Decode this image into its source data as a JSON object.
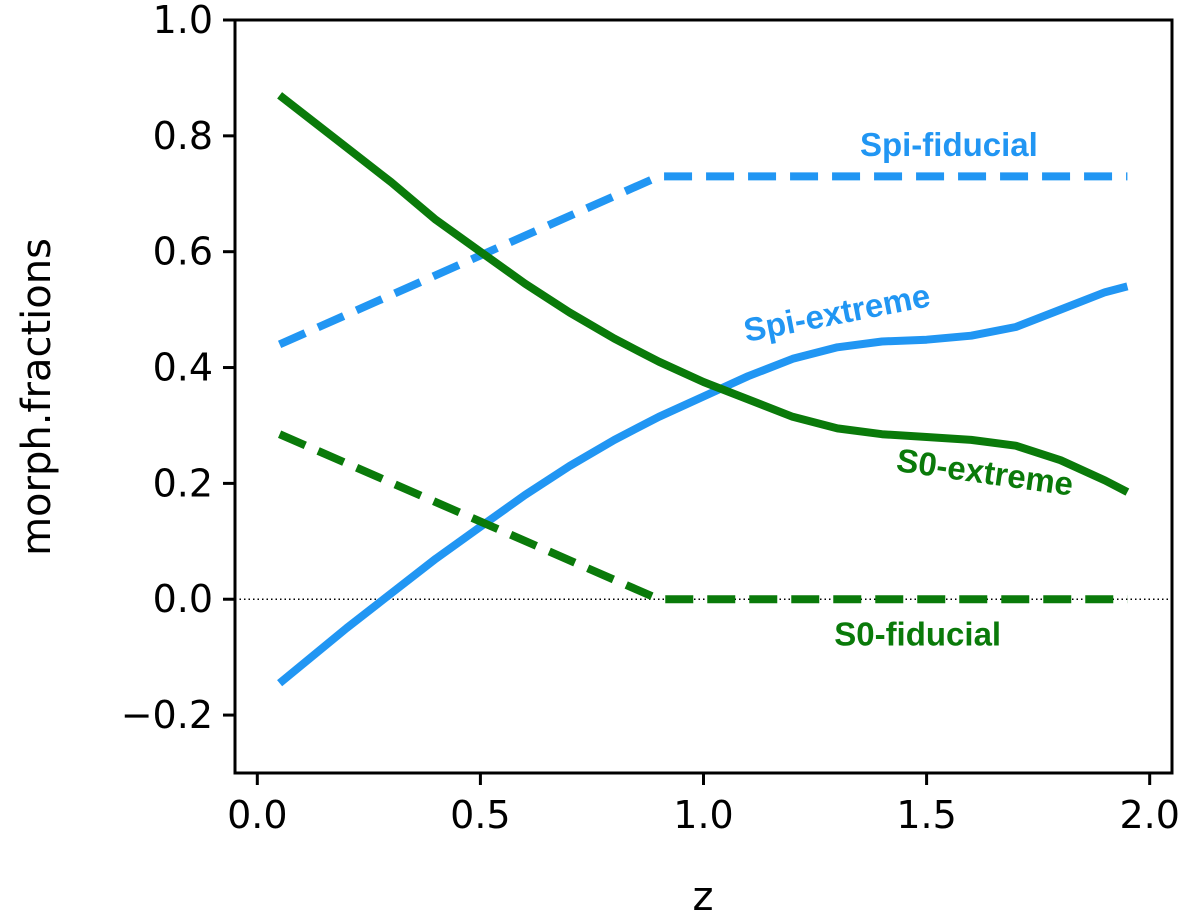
{
  "chart_data": {
    "type": "line",
    "xlabel": "z",
    "ylabel": "morph.fractions",
    "xlim": [
      -0.05,
      2.05
    ],
    "ylim": [
      -0.3,
      1.0
    ],
    "xticks": [
      0.0,
      0.5,
      1.0,
      1.5,
      2.0
    ],
    "xtick_labels": [
      "0.0",
      "0.5",
      "1.0",
      "1.5",
      "2.0"
    ],
    "yticks": [
      -0.2,
      0.0,
      0.2,
      0.4,
      0.6,
      0.8,
      1.0
    ],
    "ytick_labels": [
      "−0.2",
      "0.0",
      "0.2",
      "0.4",
      "0.6",
      "0.8",
      "1.0"
    ],
    "reference_line": {
      "y": 0.0,
      "style": "dotted",
      "color": "#000000"
    },
    "series": [
      {
        "name": "Spi-fiducial",
        "color": "#2196F3",
        "style": "dashed",
        "x": [
          0.05,
          0.9,
          1.95
        ],
        "y": [
          0.44,
          0.73,
          0.73
        ]
      },
      {
        "name": "Spi-extreme",
        "color": "#2196F3",
        "style": "solid",
        "x": [
          0.05,
          0.2,
          0.3,
          0.4,
          0.5,
          0.6,
          0.7,
          0.8,
          0.9,
          1.0,
          1.1,
          1.2,
          1.3,
          1.4,
          1.5,
          1.6,
          1.7,
          1.8,
          1.9,
          1.95
        ],
        "y": [
          -0.145,
          -0.05,
          0.01,
          0.07,
          0.125,
          0.18,
          0.23,
          0.275,
          0.315,
          0.35,
          0.385,
          0.415,
          0.435,
          0.445,
          0.448,
          0.455,
          0.47,
          0.5,
          0.53,
          0.54
        ]
      },
      {
        "name": "S0-fiducial",
        "color": "#0A7A0A",
        "style": "dashed",
        "x": [
          0.05,
          0.9,
          1.95
        ],
        "y": [
          0.285,
          0.0,
          0.0
        ]
      },
      {
        "name": "S0-extreme",
        "color": "#0A7A0A",
        "style": "solid",
        "x": [
          0.05,
          0.2,
          0.3,
          0.4,
          0.5,
          0.6,
          0.7,
          0.8,
          0.9,
          1.0,
          1.1,
          1.2,
          1.3,
          1.4,
          1.5,
          1.6,
          1.7,
          1.8,
          1.9,
          1.95
        ],
        "y": [
          0.87,
          0.78,
          0.72,
          0.655,
          0.6,
          0.545,
          0.495,
          0.45,
          0.41,
          0.375,
          0.345,
          0.315,
          0.295,
          0.285,
          0.28,
          0.275,
          0.265,
          0.24,
          0.205,
          0.185
        ]
      }
    ],
    "annotations": [
      {
        "text": "Spi-fiducial",
        "color": "#2196F3",
        "x": 1.55,
        "y": 0.78,
        "rotation": 0
      },
      {
        "text": "Spi-extreme",
        "color": "#2196F3",
        "x": 1.3,
        "y": 0.49,
        "rotation": -11
      },
      {
        "text": "S0-extreme",
        "color": "#0A7A0A",
        "x": 1.63,
        "y": 0.215,
        "rotation": 8
      },
      {
        "text": "S0-fiducial",
        "color": "#0A7A0A",
        "x": 1.48,
        "y": -0.065,
        "rotation": 0
      }
    ]
  }
}
